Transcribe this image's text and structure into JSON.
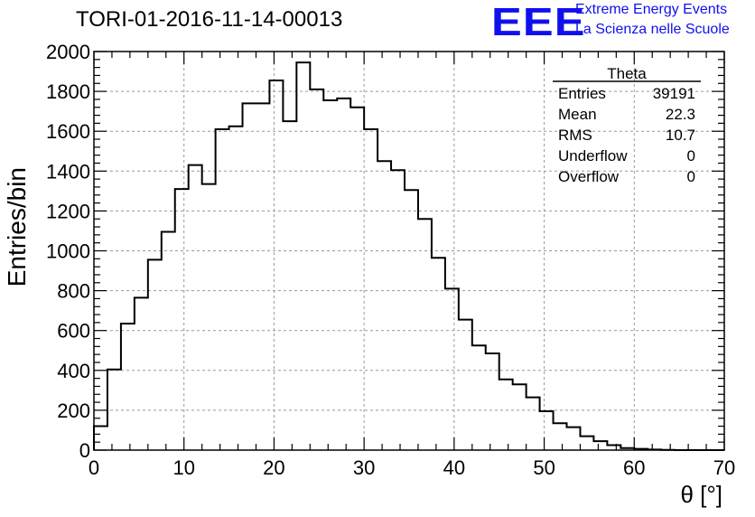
{
  "header": {
    "title": "TORI-01-2016-11-14-00013",
    "logo_text": "EEE",
    "logo_line1": "Extreme Energy Events",
    "logo_line2": "La Scienza nelle Scuole",
    "brand_color": "#1010ee"
  },
  "chart_data": {
    "type": "bar",
    "subtype": "histogram",
    "title": "TORI-01-2016-11-14-00013",
    "xlabel": "θ [°]",
    "ylabel": "Entries/bin",
    "xlim": [
      0,
      70
    ],
    "ylim": [
      0,
      2000
    ],
    "bin_width": 1.5,
    "x_ticks": [
      "0",
      "10",
      "20",
      "30",
      "40",
      "50",
      "60",
      "70"
    ],
    "y_ticks": [
      "0",
      "200",
      "400",
      "600",
      "800",
      "1000",
      "1200",
      "1400",
      "1600",
      "1800",
      "2000"
    ],
    "grid": true,
    "values": [
      120,
      405,
      635,
      765,
      955,
      1095,
      1310,
      1430,
      1335,
      1610,
      1625,
      1740,
      1740,
      1855,
      1650,
      1945,
      1810,
      1755,
      1765,
      1720,
      1610,
      1450,
      1405,
      1305,
      1160,
      965,
      810,
      655,
      525,
      485,
      355,
      330,
      265,
      195,
      135,
      115,
      70,
      45,
      25,
      10,
      6,
      3,
      1,
      0,
      0,
      0,
      0
    ],
    "stats": {
      "name": "Theta",
      "rows": [
        {
          "label": "Entries",
          "value": "39191"
        },
        {
          "label": "Mean",
          "value": "22.3"
        },
        {
          "label": "RMS",
          "value": "10.7"
        },
        {
          "label": "Underflow",
          "value": "0"
        },
        {
          "label": "Overflow",
          "value": "0"
        }
      ]
    }
  }
}
